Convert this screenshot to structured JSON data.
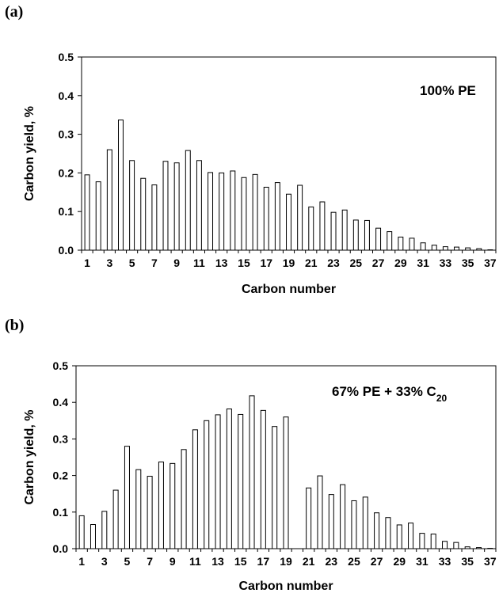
{
  "panels": [
    {
      "label": "(a)"
    },
    {
      "label": "(b)"
    }
  ],
  "chart_data": [
    {
      "type": "bar",
      "panel": "(a)",
      "annotation": "100% PE",
      "annotation_sub": "",
      "xlabel": "Carbon number",
      "ylabel": "Carbon yield, %",
      "ylim": [
        0,
        0.5
      ],
      "yticks": [
        "0.0",
        "0.1",
        "0.2",
        "0.3",
        "0.4",
        "0.5"
      ],
      "xticks": [
        "1",
        "3",
        "5",
        "7",
        "9",
        "11",
        "13",
        "15",
        "17",
        "19",
        "21",
        "23",
        "25",
        "27",
        "29",
        "31",
        "33",
        "35",
        "37"
      ],
      "categories": [
        1,
        2,
        3,
        4,
        5,
        6,
        7,
        8,
        9,
        10,
        11,
        12,
        13,
        14,
        15,
        16,
        17,
        18,
        19,
        20,
        21,
        22,
        23,
        24,
        25,
        26,
        27,
        28,
        29,
        30,
        31,
        32,
        33,
        34,
        35,
        36,
        37
      ],
      "values": [
        0.195,
        0.177,
        0.26,
        0.337,
        0.232,
        0.186,
        0.169,
        0.23,
        0.226,
        0.258,
        0.232,
        0.201,
        0.2,
        0.205,
        0.188,
        0.196,
        0.163,
        0.175,
        0.145,
        0.168,
        0.112,
        0.125,
        0.098,
        0.104,
        0.078,
        0.077,
        0.057,
        0.048,
        0.034,
        0.031,
        0.019,
        0.013,
        0.009,
        0.008,
        0.006,
        0.004,
        0.001
      ],
      "grid": false
    },
    {
      "type": "bar",
      "panel": "(b)",
      "annotation": "67% PE + 33% C",
      "annotation_sub": "20",
      "xlabel": "Carbon number",
      "ylabel": "Carbon yield, %",
      "ylim": [
        0,
        0.5
      ],
      "yticks": [
        "0.0",
        "0.1",
        "0.2",
        "0.3",
        "0.4",
        "0.5"
      ],
      "xticks": [
        "1",
        "3",
        "5",
        "7",
        "9",
        "11",
        "13",
        "15",
        "17",
        "19",
        "21",
        "23",
        "25",
        "27",
        "29",
        "31",
        "33",
        "35",
        "37"
      ],
      "categories": [
        1,
        2,
        3,
        4,
        5,
        6,
        7,
        8,
        9,
        10,
        11,
        12,
        13,
        14,
        15,
        16,
        17,
        18,
        19,
        20,
        21,
        22,
        23,
        24,
        25,
        26,
        27,
        28,
        29,
        30,
        31,
        32,
        33,
        34,
        35,
        36,
        37
      ],
      "values": [
        0.09,
        0.066,
        0.102,
        0.16,
        0.28,
        0.216,
        0.198,
        0.237,
        0.233,
        0.271,
        0.325,
        0.35,
        0.366,
        0.382,
        0.367,
        0.418,
        0.378,
        0.334,
        0.36,
        0.0,
        0.166,
        0.199,
        0.148,
        0.175,
        0.131,
        0.141,
        0.098,
        0.085,
        0.065,
        0.07,
        0.042,
        0.04,
        0.02,
        0.017,
        0.005,
        0.003,
        0.001
      ],
      "grid": false
    }
  ]
}
